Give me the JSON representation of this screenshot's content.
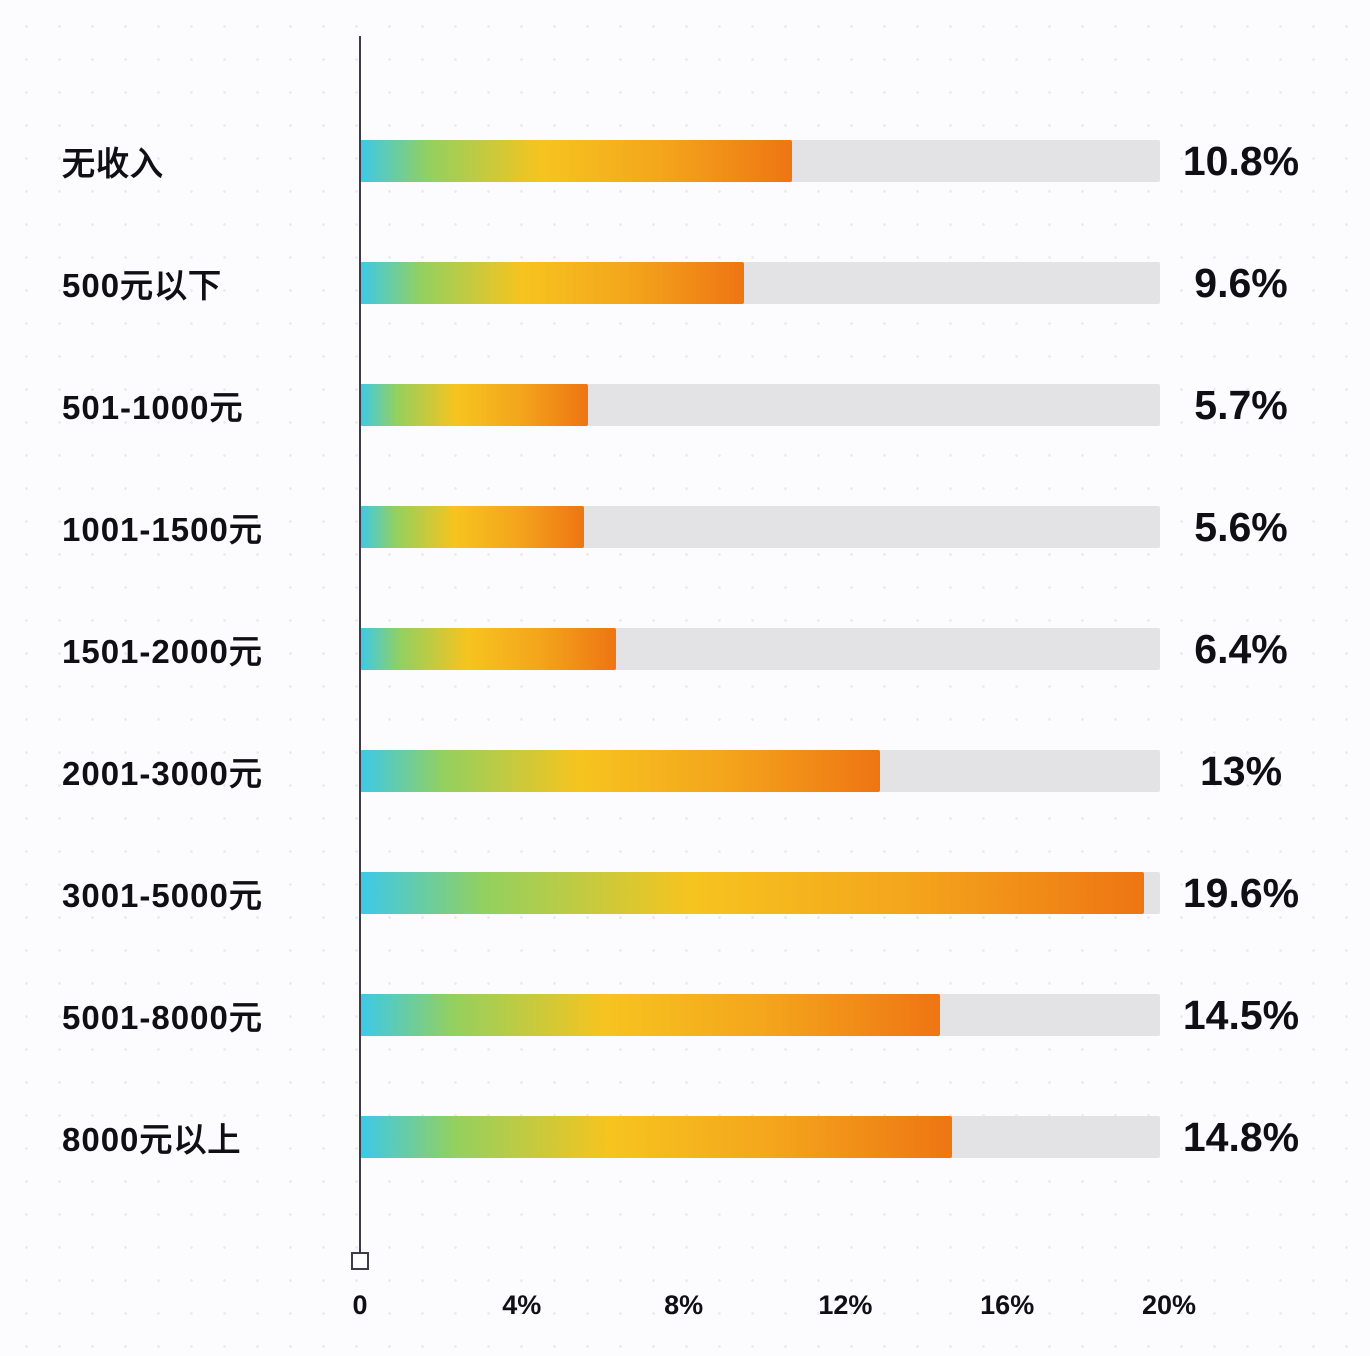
{
  "chart_data": {
    "type": "bar",
    "orientation": "horizontal",
    "title": "",
    "xlabel": "",
    "ylabel": "",
    "categories": [
      "无收入",
      "500元以下",
      "501-1000元",
      "1001-1500元",
      "1501-2000元",
      "2001-3000元",
      "3001-5000元",
      "5001-8000元",
      "8000元以上"
    ],
    "values": [
      10.8,
      9.6,
      5.7,
      5.6,
      6.4,
      13,
      19.6,
      14.5,
      14.8
    ],
    "value_labels": [
      "10.8%",
      "9.6%",
      "5.7%",
      "5.6%",
      "6.4%",
      "13%",
      "19.6%",
      "14.5%",
      "14.8%"
    ],
    "xlim": [
      0,
      20
    ],
    "x_ticks": [
      "0",
      "4%",
      "8%",
      "12%",
      "16%",
      "20%"
    ],
    "legend": "none",
    "grid": "off",
    "colors": {
      "bar_gradient_start": "#3cc9e9",
      "bar_gradient_mid": "#f6c41f",
      "bar_gradient_end": "#ee7513",
      "track": "#e3e3e5",
      "text": "#101014",
      "axis": "#3c3c46",
      "background": "#fcfcfe"
    }
  }
}
